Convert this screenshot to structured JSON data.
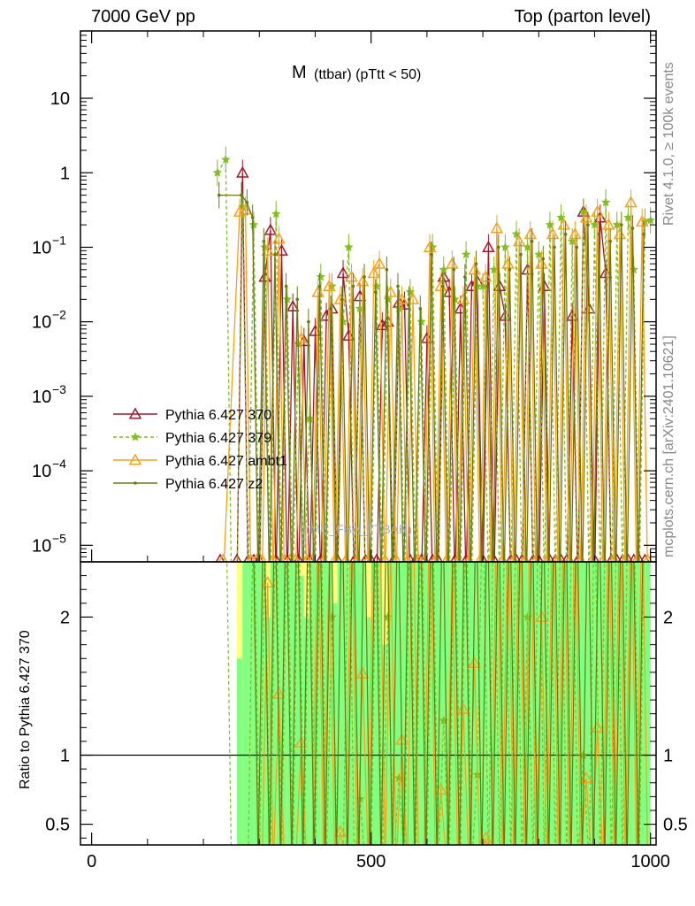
{
  "header": {
    "energy_label": "7000 GeV pp",
    "process_label": "Top (parton level)"
  },
  "side_labels": {
    "rivet": "Rivet 4.1.0, ≥ 100k events",
    "mcplots": "mcplots.cern.ch [arXiv:2401.10621]"
  },
  "chart_data": {
    "type": "line",
    "title": "M (ttbar) (pTtt < 50)",
    "title_main": "M",
    "title_sub": "(ttbar) (pTtt < 50)",
    "analysis_watermark": "(MC_FBA_TTBAR)",
    "xlim": [
      -20,
      1010
    ],
    "upper_panel": {
      "yscale": "log",
      "ylim": [
        6e-06,
        80
      ],
      "y_ticks": [
        {
          "value": 10,
          "base": "10",
          "exp": ""
        },
        {
          "value": 1,
          "base": "1",
          "exp": ""
        },
        {
          "value": 0.1,
          "base": "10",
          "exp": "−1"
        },
        {
          "value": 0.01,
          "base": "10",
          "exp": "−2"
        },
        {
          "value": 0.001,
          "base": "10",
          "exp": "−3"
        },
        {
          "value": 0.0001,
          "base": "10",
          "exp": "−4"
        },
        {
          "value": 1e-05,
          "base": "10",
          "exp": "−5"
        }
      ]
    },
    "lower_panel": {
      "ylabel": "Ratio to Pythia 6.427 370",
      "ylim": [
        0.35,
        2.4
      ],
      "y_ticks": [
        {
          "value": 0.5,
          "label": "0.5"
        },
        {
          "value": 1,
          "label": "1"
        },
        {
          "value": 2,
          "label": "2"
        }
      ]
    },
    "x_ticks": [
      {
        "value": 0,
        "label": "0"
      },
      {
        "value": 500,
        "label": "500"
      },
      {
        "value": 1000,
        "label": "1000"
      }
    ],
    "series": [
      {
        "name": "Pythia 6.427 370",
        "color": "#a0182c",
        "marker": "triangle-open",
        "dash": "solid",
        "x": [
          230,
          260,
          270,
          280,
          290,
          300,
          310,
          320,
          330,
          340,
          350,
          360,
          370,
          380,
          390,
          400,
          410,
          420,
          430,
          440,
          450,
          460,
          470,
          480,
          490,
          500,
          510,
          520,
          530,
          540,
          550,
          560,
          570,
          580,
          590,
          600,
          610,
          620,
          630,
          640,
          650,
          660,
          670,
          680,
          690,
          700,
          710,
          720,
          730,
          740,
          750,
          760,
          770,
          780,
          790,
          800,
          810,
          820,
          830,
          840,
          850,
          860,
          870,
          880,
          890,
          900,
          910,
          920,
          930,
          940,
          950,
          960,
          970,
          980,
          990
        ],
        "y": [
          0,
          0,
          1.0,
          0,
          0,
          0,
          0.04,
          0.17,
          0,
          0.09,
          0,
          0.016,
          0,
          0.0055,
          0,
          0.0075,
          0,
          0.012,
          0.015,
          0,
          0.045,
          0.0065,
          0,
          0.022,
          0,
          0,
          0,
          0.009,
          0.01,
          0,
          0.018,
          0.017,
          0,
          0,
          0,
          0.006,
          0,
          0,
          0.04,
          0.025,
          0,
          0.015,
          0,
          0.03,
          0.035,
          0,
          0.1,
          0,
          0.03,
          0.012,
          0,
          0,
          0,
          0.05,
          0,
          0,
          0.03,
          0,
          0,
          0,
          0,
          0.012,
          0,
          0.3,
          0.015,
          0,
          0.25,
          0.045,
          0,
          0,
          0,
          0,
          0,
          0,
          0
        ]
      },
      {
        "name": "Pythia 6.427 379",
        "color": "#7fbf1f",
        "marker": "star",
        "dash": "dashed",
        "x": [
          225,
          240,
          250,
          260,
          270,
          280,
          290,
          300,
          310,
          320,
          330,
          340,
          350,
          360,
          370,
          380,
          390,
          400,
          410,
          420,
          430,
          440,
          450,
          460,
          470,
          480,
          490,
          500,
          510,
          520,
          530,
          540,
          550,
          560,
          570,
          580,
          590,
          600,
          610,
          620,
          630,
          640,
          650,
          660,
          670,
          680,
          690,
          700,
          710,
          720,
          730,
          740,
          750,
          760,
          770,
          780,
          790,
          800,
          810,
          820,
          830,
          840,
          850,
          860,
          870,
          880,
          890,
          900,
          910,
          920,
          930,
          940,
          950,
          960,
          970,
          980,
          990,
          1000
        ],
        "y": [
          1.0,
          1.5,
          0,
          0,
          0.35,
          0,
          0.2,
          0,
          0.1,
          0,
          0.28,
          0,
          0.02,
          0,
          0.005,
          0,
          0.0005,
          0,
          0.04,
          0,
          0.03,
          0,
          0.01,
          0.1,
          0,
          0.015,
          0,
          0,
          0.03,
          0,
          0.02,
          0,
          0.015,
          0,
          0.025,
          0,
          0.01,
          0,
          0.1,
          0,
          0.05,
          0,
          0.02,
          0,
          0.08,
          0,
          0.03,
          0.03,
          0,
          0.05,
          0,
          0.1,
          0,
          0.15,
          0,
          0.1,
          0,
          0.08,
          0,
          0.2,
          0,
          0.25,
          0,
          0.12,
          0,
          0.3,
          0,
          0.2,
          0,
          0.4,
          0,
          0.2,
          0,
          0.25,
          0.05,
          0,
          0.22,
          0.23
        ]
      },
      {
        "name": "Pythia 6.427 ambt1",
        "color": "#f5a21b",
        "marker": "triangle-open",
        "dash": "solid",
        "x": [
          235,
          265,
          275,
          285,
          295,
          305,
          315,
          325,
          335,
          345,
          355,
          365,
          375,
          385,
          395,
          405,
          415,
          425,
          435,
          445,
          455,
          465,
          475,
          485,
          495,
          505,
          515,
          525,
          535,
          545,
          555,
          565,
          575,
          585,
          595,
          605,
          615,
          625,
          635,
          645,
          655,
          665,
          675,
          685,
          695,
          705,
          715,
          725,
          735,
          745,
          755,
          765,
          775,
          785,
          795,
          805,
          815,
          825,
          835,
          845,
          855,
          865,
          875,
          885,
          895,
          905,
          915,
          925,
          935,
          945,
          955,
          965,
          975,
          985,
          995
        ],
        "y": [
          0,
          0.3,
          0.32,
          0,
          0,
          0,
          0.09,
          0,
          0.13,
          0,
          0,
          0,
          0.006,
          0,
          0,
          0.025,
          0,
          0.03,
          0,
          0.02,
          0,
          0.04,
          0,
          0.035,
          0,
          0.045,
          0.06,
          0,
          0.025,
          0,
          0.02,
          0,
          0.02,
          0,
          0,
          0.1,
          0,
          0.03,
          0,
          0.06,
          0,
          0.02,
          0,
          0.05,
          0,
          0.04,
          0,
          0.18,
          0,
          0.06,
          0,
          0.12,
          0,
          0.15,
          0,
          0.06,
          0,
          0.15,
          0,
          0.2,
          0,
          0.15,
          0,
          0.25,
          0,
          0.3,
          0,
          0.2,
          0,
          0.15,
          0,
          0.4,
          0,
          0.22,
          0
        ]
      },
      {
        "name": "Pythia 6.427 z2",
        "color": "#6b7a10",
        "marker": "dot",
        "dash": "solid",
        "x": [
          228,
          268,
          278,
          288,
          298,
          308,
          318,
          328,
          338,
          348,
          358,
          368,
          378,
          388,
          398,
          408,
          418,
          428,
          438,
          448,
          458,
          468,
          478,
          488,
          498,
          508,
          518,
          528,
          538,
          548,
          558,
          568,
          578,
          588,
          598,
          608,
          618,
          628,
          638,
          648,
          658,
          668,
          678,
          688,
          698,
          708,
          718,
          728,
          738,
          748,
          758,
          768,
          778,
          788,
          798,
          808,
          818,
          828,
          838,
          848,
          858,
          868,
          878,
          888,
          898,
          908,
          918,
          928,
          938,
          948,
          958,
          968,
          978,
          988
        ],
        "y": [
          0.5,
          0.5,
          0.4,
          0.25,
          0,
          0.12,
          0,
          0.08,
          0,
          0.03,
          0,
          0.02,
          0,
          0.01,
          0,
          0.03,
          0,
          0.015,
          0,
          0.02,
          0,
          0.03,
          0,
          0.04,
          0,
          0.025,
          0,
          0.05,
          0,
          0.03,
          0,
          0.02,
          0,
          0.015,
          0,
          0.08,
          0,
          0.03,
          0,
          0.05,
          0,
          0.04,
          0,
          0.06,
          0,
          0.03,
          0,
          0.1,
          0,
          0.05,
          0,
          0.08,
          0,
          0.12,
          0,
          0.07,
          0,
          0.1,
          0,
          0.15,
          0,
          0.1,
          0,
          0.2,
          0,
          0.15,
          0,
          0.12,
          0,
          0.2,
          0,
          0.18,
          0,
          0.15
        ]
      }
    ],
    "ratio_band": {
      "x": [
        260,
        270,
        280,
        290,
        300,
        310,
        320,
        330,
        340,
        350,
        360,
        370,
        380,
        390,
        400,
        410,
        420,
        430,
        440,
        450,
        460,
        470,
        480,
        490,
        500,
        510,
        520,
        530,
        540,
        550,
        560,
        570,
        580,
        590,
        600,
        610,
        620,
        630,
        640,
        650,
        660,
        670,
        680,
        690,
        700,
        710,
        720,
        730,
        740,
        750,
        760,
        770,
        780,
        790,
        800,
        810,
        820,
        830,
        840,
        850,
        860,
        870,
        880,
        890,
        900,
        910,
        920,
        930,
        940,
        950,
        960,
        970,
        980,
        990
      ],
      "yellow_lo": [
        0.35,
        0.35,
        0.35,
        0.35,
        0.35,
        0.35,
        0.35,
        0.35,
        0.35,
        0.35,
        0.35,
        0.35,
        0.35,
        0.35,
        0.35,
        0.35,
        0.35,
        0.35,
        0.35,
        0.35,
        0.35,
        0.35,
        0.35,
        0.35,
        0.35,
        0.35,
        0.35,
        0.35,
        0.35,
        0.35,
        0.35,
        0.35,
        0.35,
        0.35,
        0.35,
        0.35,
        0.35,
        0.35,
        0.35,
        0.35,
        0.35,
        0.35,
        0.35,
        0.35,
        0.35,
        0.35,
        0.35,
        0.35,
        0.35,
        0.35,
        0.35,
        0.35,
        0.35,
        0.35,
        0.35,
        0.35,
        0.35,
        0.35,
        0.35,
        0.35,
        0.35,
        0.35,
        0.35,
        0.35,
        0.35,
        0.35,
        0.35,
        0.35,
        0.35,
        0.35,
        0.35,
        0.35,
        0.35,
        0.35
      ],
      "yellow_hi": [
        2.4,
        2.4,
        2.4,
        2.4,
        2.4,
        2.4,
        2.4,
        2.4,
        2.4,
        2.4,
        2.4,
        2.4,
        2.4,
        2.4,
        2.4,
        2.4,
        2.4,
        2.4,
        2.4,
        2.4,
        2.4,
        2.4,
        2.4,
        2.4,
        2.4,
        2.4,
        2.4,
        2.4,
        2.4,
        2.4,
        2.4,
        2.4,
        2.4,
        2.4,
        2.4,
        2.4,
        2.4,
        2.4,
        2.4,
        2.4,
        2.4,
        2.4,
        2.4,
        2.4,
        2.4,
        2.4,
        2.4,
        2.4,
        2.4,
        2.4,
        2.4,
        2.4,
        2.4,
        2.4,
        2.4,
        2.4,
        2.4,
        2.4,
        2.4,
        2.4,
        2.4,
        2.4,
        2.4,
        2.4,
        2.4,
        2.4,
        2.4,
        2.4,
        2.4,
        2.4,
        2.4,
        2.4,
        2.4,
        2.4
      ],
      "green_lo": [
        0.35,
        0.35,
        0.35,
        0.35,
        0.35,
        0.35,
        0.35,
        0.35,
        0.35,
        0.35,
        0.35,
        0.35,
        0.35,
        0.35,
        0.35,
        0.35,
        0.35,
        0.35,
        0.35,
        0.35,
        0.35,
        0.35,
        0.35,
        0.35,
        0.35,
        0.35,
        0.35,
        0.35,
        0.35,
        0.35,
        0.35,
        0.35,
        0.35,
        0.35,
        0.35,
        0.35,
        0.35,
        0.35,
        0.35,
        0.35,
        0.35,
        0.35,
        0.35,
        0.35,
        0.35,
        0.35,
        0.35,
        0.35,
        0.35,
        0.35,
        0.35,
        0.35,
        0.35,
        0.35,
        0.35,
        0.35,
        0.35,
        0.35,
        0.35,
        0.35,
        0.35,
        0.35,
        0.35,
        0.35,
        0.35,
        0.35,
        0.35,
        0.35,
        0.35,
        0.35,
        0.35,
        0.35,
        0.35,
        0.35
      ],
      "green_hi": [
        1.7,
        2.4,
        2.4,
        2.4,
        2.4,
        2.0,
        2.4,
        2.4,
        2.4,
        2.4,
        2.4,
        2.3,
        2.0,
        2.4,
        2.4,
        2.4,
        2.4,
        2.1,
        2.4,
        2.4,
        2.4,
        2.4,
        2.4,
        2.0,
        2.4,
        2.4,
        1.8,
        2.4,
        2.4,
        2.4,
        2.4,
        2.4,
        2.4,
        2.4,
        2.4,
        2.4,
        2.4,
        2.4,
        2.4,
        2.4,
        2.4,
        2.4,
        2.4,
        2.4,
        2.4,
        2.4,
        2.4,
        2.4,
        2.4,
        2.4,
        2.4,
        2.4,
        2.4,
        2.4,
        2.4,
        2.4,
        2.4,
        2.4,
        2.4,
        2.4,
        2.4,
        2.4,
        2.4,
        2.4,
        2.4,
        2.4,
        2.4,
        2.4,
        2.4,
        2.4,
        2.4,
        2.4,
        2.4,
        2.4
      ],
      "yellow_color": "#ffff80",
      "green_color": "#80ff80"
    }
  }
}
